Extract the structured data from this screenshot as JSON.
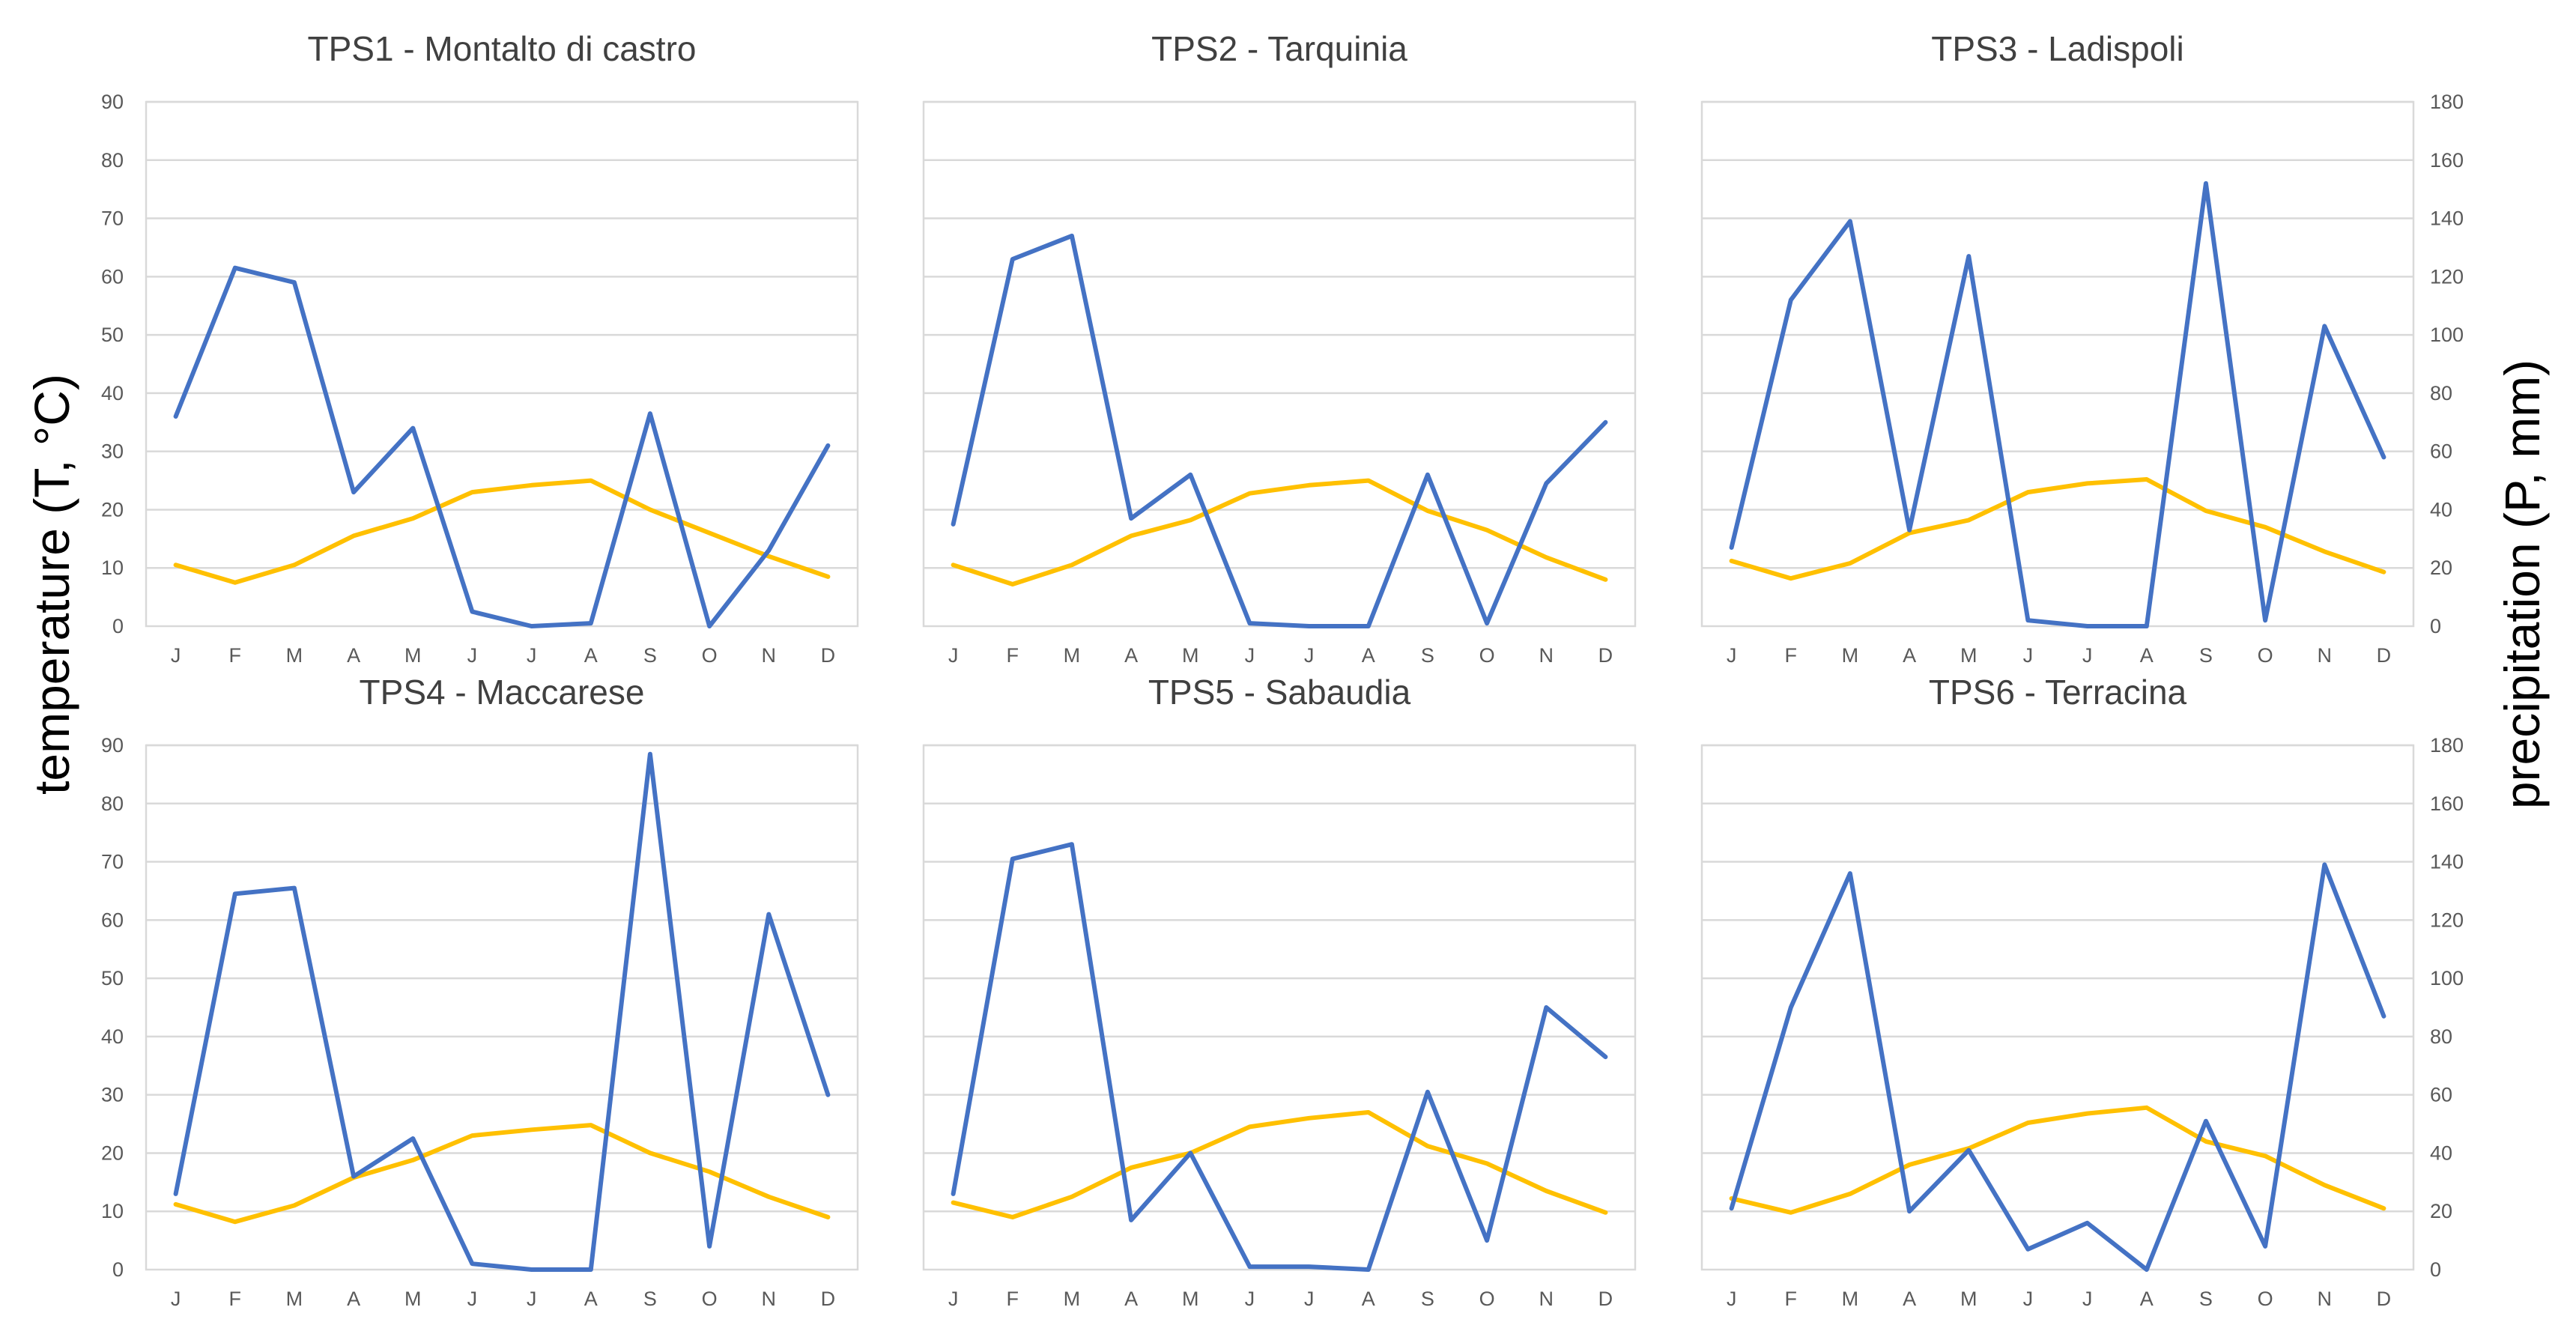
{
  "chart_data": {
    "type": "line",
    "left_axis": {
      "label": "temperature (T, °C)",
      "ylim": [
        0,
        90
      ],
      "ticks": [
        "0",
        "10",
        "20",
        "30",
        "40",
        "50",
        "60",
        "70",
        "80",
        "90"
      ]
    },
    "right_axis": {
      "label": "precipitation (P, mm)",
      "ylim": [
        0,
        180
      ],
      "ticks": [
        "0",
        "20",
        "40",
        "60",
        "80",
        "100",
        "120",
        "140",
        "160",
        "180"
      ]
    },
    "categories": [
      "J",
      "F",
      "M",
      "A",
      "M",
      "J",
      "J",
      "A",
      "S",
      "O",
      "N",
      "D"
    ],
    "colors": {
      "precipitation": "#4472c4",
      "temperature": "#ffc000"
    },
    "panels": [
      {
        "title": "TPS1 - Montalto di castro",
        "series": [
          {
            "name": "precipitation",
            "axis": "right",
            "values": [
              72,
              123,
              118,
              46,
              68,
              5,
              0,
              1,
              73,
              0,
              26,
              62
            ]
          },
          {
            "name": "temperature",
            "axis": "left",
            "values": [
              10.5,
              7.5,
              10.5,
              15.5,
              18.5,
              23,
              24.2,
              25,
              20,
              16,
              12,
              8.5
            ]
          }
        ]
      },
      {
        "title": "TPS2 - Tarquinia",
        "series": [
          {
            "name": "precipitation",
            "axis": "right",
            "values": [
              35,
              126,
              134,
              37,
              52,
              1,
              0,
              0,
              52,
              1,
              49,
              70
            ]
          },
          {
            "name": "temperature",
            "axis": "left",
            "values": [
              10.5,
              7.2,
              10.5,
              15.5,
              18.2,
              22.8,
              24.2,
              25,
              19.8,
              16.5,
              11.8,
              8
            ]
          }
        ]
      },
      {
        "title": "TPS3 - Ladispoli",
        "series": [
          {
            "name": "precipitation",
            "axis": "right",
            "values": [
              27,
              112,
              139,
              33,
              127,
              2,
              0,
              0,
              152,
              2,
              103,
              58
            ]
          },
          {
            "name": "temperature",
            "axis": "left",
            "values": [
              11.2,
              8.2,
              10.8,
              16,
              18.2,
              23,
              24.5,
              25.2,
              19.8,
              17,
              12.8,
              9.3
            ]
          }
        ]
      },
      {
        "title": "TPS4 - Maccarese",
        "series": [
          {
            "name": "precipitation",
            "axis": "right",
            "values": [
              26,
              129,
              131,
              32,
              45,
              2,
              0,
              0,
              177,
              8,
              122,
              60
            ]
          },
          {
            "name": "temperature",
            "axis": "left",
            "values": [
              11.2,
              8.2,
              11,
              15.8,
              18.8,
              23,
              24,
              24.8,
              20,
              16.8,
              12.5,
              9
            ]
          }
        ]
      },
      {
        "title": "TPS5 - Sabaudia",
        "series": [
          {
            "name": "precipitation",
            "axis": "right",
            "values": [
              26,
              141,
              146,
              17,
              40,
              1,
              1,
              0,
              61,
              10,
              90,
              73
            ]
          },
          {
            "name": "temperature",
            "axis": "left",
            "values": [
              11.5,
              9,
              12.5,
              17.5,
              20,
              24.5,
              26,
              27,
              21.2,
              18.2,
              13.5,
              9.8
            ]
          }
        ]
      },
      {
        "title": "TPS6 - Terracina",
        "series": [
          {
            "name": "precipitation",
            "axis": "right",
            "values": [
              21,
              90,
              136,
              20,
              41,
              7,
              16,
              0,
              51,
              8,
              139,
              87
            ]
          },
          {
            "name": "temperature",
            "axis": "left",
            "values": [
              12.2,
              9.8,
              13,
              18,
              20.8,
              25.2,
              26.8,
              27.8,
              22,
              19.5,
              14.5,
              10.5
            ]
          }
        ]
      }
    ]
  }
}
